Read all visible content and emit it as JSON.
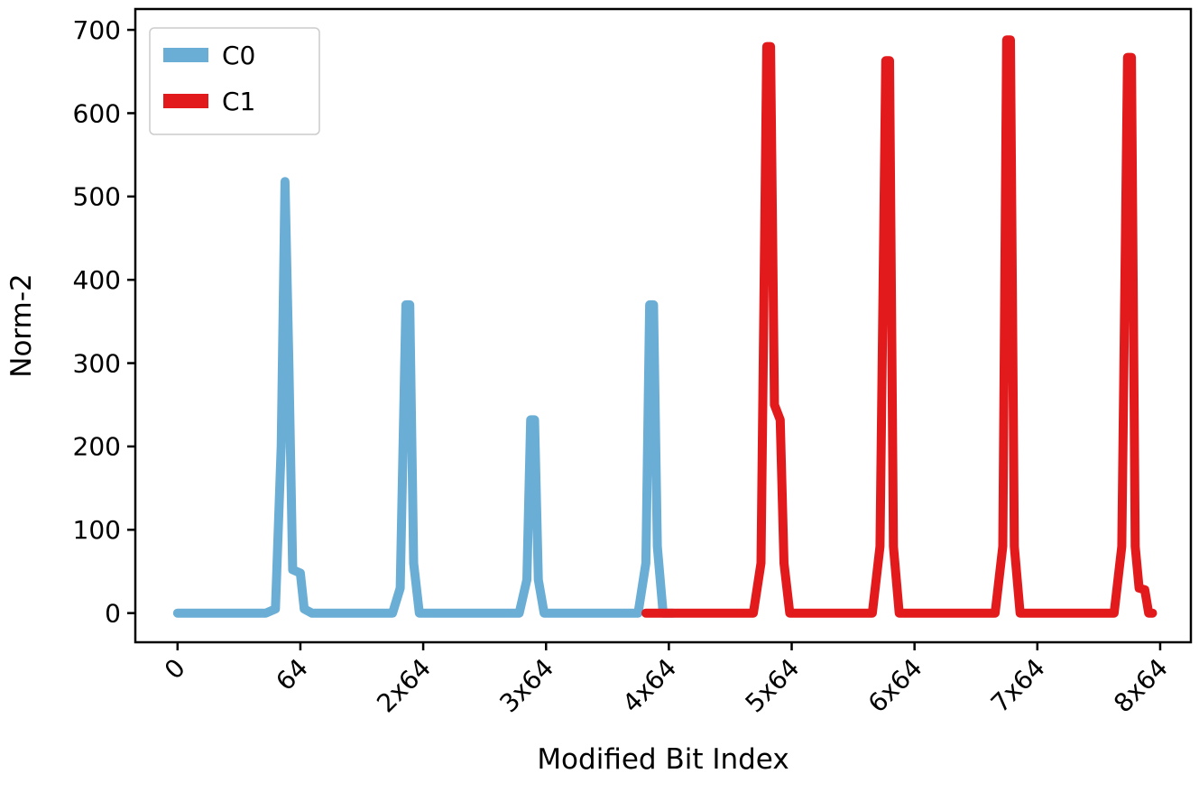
{
  "figure": {
    "background": "#ffffff"
  },
  "chart_data": {
    "type": "line",
    "title": "",
    "xlabel": "Modified Bit Index",
    "ylabel": "Norm-2",
    "xlim": [
      -22,
      528
    ],
    "ylim": [
      -35,
      725
    ],
    "grid": false,
    "axis_color": "#000000",
    "tick_label_color": "#000000",
    "linewidth": 10,
    "xticks": {
      "positions": [
        0,
        64,
        128,
        192,
        256,
        320,
        384,
        448,
        512
      ],
      "labels": [
        "0",
        "64",
        "2x64",
        "3x64",
        "4x64",
        "5x64",
        "6x64",
        "7x64",
        "8x64"
      ],
      "rotation_deg": 45
    },
    "yticks": {
      "positions": [
        0,
        100,
        200,
        300,
        400,
        500,
        600,
        700
      ],
      "labels": [
        "0",
        "100",
        "200",
        "300",
        "400",
        "500",
        "600",
        "700"
      ]
    },
    "legend": {
      "position": "upper-left",
      "entries": [
        "C0",
        "C1"
      ],
      "border_color": "#cccccc",
      "background": "#ffffff"
    },
    "series": [
      {
        "name": "C0",
        "color": "#6aaed6",
        "peak_summary": "spikes ~518 near x=58 (shoulder ~50), ~370 near x=121, ~232 near x=185, ~370 near x=247",
        "points": [
          [
            0,
            0
          ],
          [
            46,
            0
          ],
          [
            51,
            5
          ],
          [
            54,
            200
          ],
          [
            56,
            518
          ],
          [
            58,
            300
          ],
          [
            60,
            52
          ],
          [
            64,
            48
          ],
          [
            66,
            5
          ],
          [
            70,
            0
          ],
          [
            112,
            0
          ],
          [
            116,
            30
          ],
          [
            119,
            370
          ],
          [
            121,
            370
          ],
          [
            123,
            60
          ],
          [
            126,
            0
          ],
          [
            178,
            0
          ],
          [
            182,
            40
          ],
          [
            184,
            232
          ],
          [
            186,
            232
          ],
          [
            188,
            40
          ],
          [
            191,
            0
          ],
          [
            240,
            0
          ],
          [
            244,
            60
          ],
          [
            246,
            370
          ],
          [
            248,
            370
          ],
          [
            250,
            80
          ],
          [
            253,
            0
          ],
          [
            258,
            0
          ]
        ]
      },
      {
        "name": "C1",
        "color": "#e31a1c",
        "peak_summary": "spikes ~680 near x=308 (shoulder ~232), ~663 near x=370, ~688 near x=433, ~667 near x=496 (small nub ~30 at end)",
        "points": [
          [
            244,
            0
          ],
          [
            300,
            0
          ],
          [
            304,
            60
          ],
          [
            307,
            680
          ],
          [
            309,
            680
          ],
          [
            311,
            250
          ],
          [
            314,
            232
          ],
          [
            316,
            60
          ],
          [
            319,
            0
          ],
          [
            362,
            0
          ],
          [
            366,
            80
          ],
          [
            369,
            663
          ],
          [
            371,
            663
          ],
          [
            373,
            80
          ],
          [
            376,
            0
          ],
          [
            426,
            0
          ],
          [
            430,
            80
          ],
          [
            432,
            688
          ],
          [
            434,
            688
          ],
          [
            436,
            80
          ],
          [
            439,
            0
          ],
          [
            488,
            0
          ],
          [
            492,
            80
          ],
          [
            495,
            667
          ],
          [
            497,
            667
          ],
          [
            499,
            80
          ],
          [
            501,
            30
          ],
          [
            504,
            28
          ],
          [
            506,
            0
          ],
          [
            508,
            0
          ]
        ]
      }
    ]
  }
}
